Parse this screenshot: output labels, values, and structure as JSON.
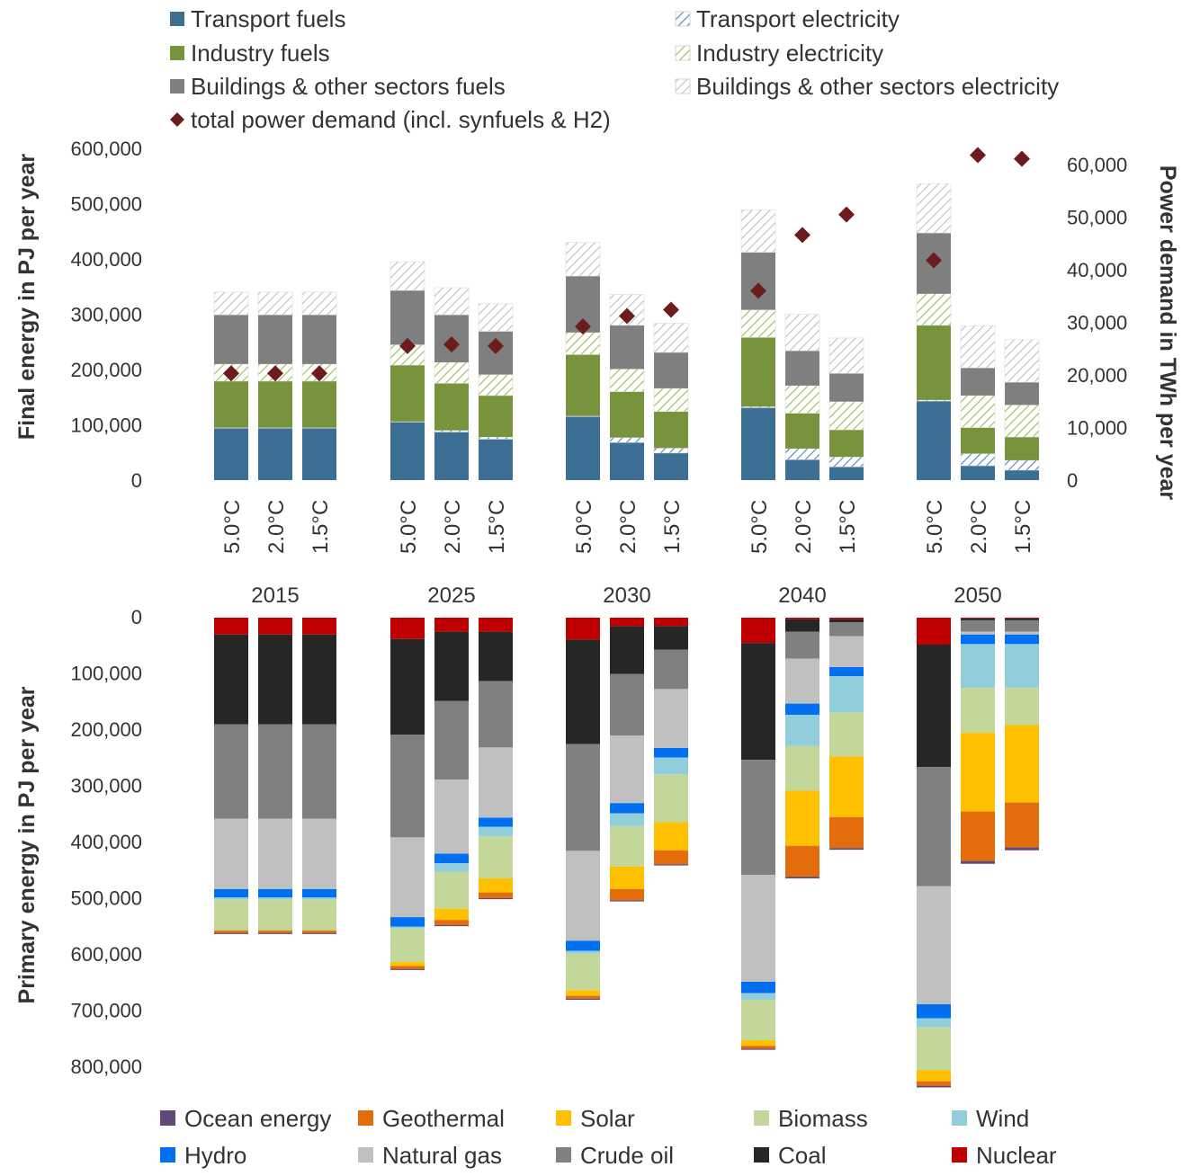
{
  "colors": {
    "transport_fuels": "#3d6e94",
    "industry_fuels": "#77933c",
    "buildings_fuels": "#7f7f7f",
    "transport_elec": "#4f81bd",
    "industry_elec": "#9bbb59",
    "buildings_elec": "#bfbfbf",
    "power_marker": "#6b1c1c",
    "ocean": "#60497a",
    "geothermal": "#e46c0a",
    "solar": "#ffc000",
    "biomass": "#c4d79b",
    "wind": "#92cddc",
    "hydro": "#0070f0",
    "natural_gas": "#c0c0c0",
    "crude_oil": "#808080",
    "coal": "#262626",
    "nuclear": "#c00000"
  },
  "legend_top": [
    {
      "key": "transport_fuels",
      "label": "Transport fuels",
      "pattern": false
    },
    {
      "key": "transport_elec",
      "label": "Transport electricity",
      "pattern": true
    },
    {
      "key": "industry_fuels",
      "label": "Industry fuels",
      "pattern": false
    },
    {
      "key": "industry_elec",
      "label": "Industry electricity",
      "pattern": true
    },
    {
      "key": "buildings_fuels",
      "label": "Buildings & other sectors fuels",
      "pattern": false
    },
    {
      "key": "buildings_elec",
      "label": "Buildings & other sectors electricity",
      "pattern": true
    },
    {
      "key": "power_marker",
      "label": "total power demand (incl. synfuels & H2)",
      "marker": "diamond"
    }
  ],
  "legend_bottom": [
    {
      "key": "ocean",
      "label": "Ocean energy"
    },
    {
      "key": "geothermal",
      "label": "Geothermal"
    },
    {
      "key": "solar",
      "label": "Solar"
    },
    {
      "key": "biomass",
      "label": "Biomass"
    },
    {
      "key": "wind",
      "label": "Wind"
    },
    {
      "key": "hydro",
      "label": "Hydro"
    },
    {
      "key": "natural_gas",
      "label": "Natural gas"
    },
    {
      "key": "crude_oil",
      "label": "Crude oil"
    },
    {
      "key": "coal",
      "label": "Coal"
    },
    {
      "key": "nuclear",
      "label": "Nuclear"
    }
  ],
  "chart_data": [
    {
      "type": "bar",
      "stacked": true,
      "title": "",
      "ylabel": "Final energy in PJ per year",
      "y2label": "Power demand in TWh per year",
      "ylim": [
        0,
        600000
      ],
      "y2lim": [
        0,
        63000
      ],
      "yticks": [
        "0",
        "100,000",
        "200,000",
        "300,000",
        "400,000",
        "500,000",
        "600,000"
      ],
      "y2ticks": [
        "0",
        "10,000",
        "20,000",
        "30,000",
        "40,000",
        "50,000",
        "60,000"
      ],
      "groups": [
        "2015",
        "2025",
        "2030",
        "2040",
        "2050"
      ],
      "scenarios": [
        "5.0°C",
        "2.0°C",
        "1.5°C"
      ],
      "series": [
        {
          "key": "transport_fuels",
          "name": "Transport fuels",
          "values": [
            [
              94000,
              94000,
              94000
            ],
            [
              105000,
              87000,
              74000
            ],
            [
              115000,
              68000,
              49000
            ],
            [
              131000,
              37000,
              24000
            ],
            [
              143000,
              26000,
              18000
            ]
          ]
        },
        {
          "key": "transport_elec",
          "name": "Transport electricity",
          "values": [
            [
              1000,
              1000,
              1000
            ],
            [
              1000,
              3000,
              4000
            ],
            [
              1000,
              9000,
              9000
            ],
            [
              2000,
              20000,
              18000
            ],
            [
              2000,
              22000,
              18000
            ]
          ]
        },
        {
          "key": "industry_fuels",
          "name": "Industry fuels",
          "values": [
            [
              84000,
              84000,
              84000
            ],
            [
              102000,
              85000,
              75000
            ],
            [
              111000,
              83000,
              66000
            ],
            [
              125000,
              64000,
              49000
            ],
            [
              135000,
              47000,
              42000
            ]
          ]
        },
        {
          "key": "industry_elec",
          "name": "Industry electricity",
          "values": [
            [
              31000,
              31000,
              31000
            ],
            [
              37000,
              38000,
              38000
            ],
            [
              40000,
              41000,
              42000
            ],
            [
              50000,
              50000,
              51000
            ],
            [
              57000,
              58000,
              58000
            ]
          ]
        },
        {
          "key": "buildings_fuels",
          "name": "Buildings & other sectors fuels",
          "values": [
            [
              89000,
              89000,
              89000
            ],
            [
              98000,
              86000,
              78000
            ],
            [
              102000,
              79000,
              65000
            ],
            [
              104000,
              63000,
              51000
            ],
            [
              110000,
              50000,
              41000
            ]
          ]
        },
        {
          "key": "buildings_elec",
          "name": "Buildings & other sectors electricity",
          "values": [
            [
              41000,
              41000,
              41000
            ],
            [
              52000,
              49000,
              50000
            ],
            [
              61000,
              56000,
              53000
            ],
            [
              77000,
              66000,
              64000
            ],
            [
              89000,
              76000,
              77000
            ]
          ]
        }
      ],
      "power_demand": {
        "name": "total power demand (incl. synfuels & H2)",
        "values": [
          [
            20300,
            20300,
            20300
          ],
          [
            25500,
            25800,
            25500
          ],
          [
            29200,
            31200,
            32400
          ],
          [
            36000,
            46600,
            50500
          ],
          [
            41800,
            61800,
            61100
          ]
        ]
      }
    },
    {
      "type": "bar",
      "stacked": true,
      "title": "",
      "ylabel": "Primary energy in PJ per year",
      "ylim": [
        0,
        850000
      ],
      "axis_inverted": true,
      "yticks": [
        "0",
        "100,000",
        "200,000",
        "300,000",
        "400,000",
        "500,000",
        "600,000",
        "700,000",
        "800,000"
      ],
      "groups": [
        "2015",
        "2025",
        "2030",
        "2040",
        "2050"
      ],
      "scenarios": [
        "5.0°C",
        "2.0°C",
        "1.5°C"
      ],
      "series": [
        {
          "key": "nuclear",
          "name": "Nuclear",
          "values": [
            [
              30000,
              30000,
              30000
            ],
            [
              38000,
              25000,
              25000
            ],
            [
              39000,
              15000,
              15000
            ],
            [
              45000,
              3000,
              3000
            ],
            [
              48000,
              2000,
              2000
            ]
          ]
        },
        {
          "key": "coal",
          "name": "Coal",
          "values": [
            [
              160000,
              160000,
              160000
            ],
            [
              170000,
              123000,
              88000
            ],
            [
              186000,
              85000,
              42000
            ],
            [
              208000,
              22000,
              5000
            ],
            [
              218000,
              3000,
              3000
            ]
          ]
        },
        {
          "key": "crude_oil",
          "name": "Crude oil",
          "values": [
            [
              168000,
              168000,
              168000
            ],
            [
              183000,
              140000,
              118000
            ],
            [
              190000,
              110000,
              70000
            ],
            [
              205000,
              48000,
              25000
            ],
            [
              212000,
              20000,
              20000
            ]
          ]
        },
        {
          "key": "natural_gas",
          "name": "Natural gas",
          "values": [
            [
              125000,
              125000,
              125000
            ],
            [
              142000,
              132000,
              125000
            ],
            [
              160000,
              120000,
              105000
            ],
            [
              190000,
              80000,
              55000
            ],
            [
              210000,
              5000,
              5000
            ]
          ]
        },
        {
          "key": "hydro",
          "name": "Hydro",
          "values": [
            [
              15000,
              15000,
              15000
            ],
            [
              17000,
              17000,
              16000
            ],
            [
              18000,
              18000,
              17000
            ],
            [
              20000,
              20000,
              16000
            ],
            [
              25000,
              17000,
              17000
            ]
          ]
        },
        {
          "key": "wind",
          "name": "Wind",
          "values": [
            [
              3000,
              3000,
              3000
            ],
            [
              3000,
              15000,
              17000
            ],
            [
              5000,
              23000,
              30000
            ],
            [
              12000,
              55000,
              65000
            ],
            [
              16000,
              78000,
              78000
            ]
          ]
        },
        {
          "key": "biomass",
          "name": "Biomass",
          "values": [
            [
              55000,
              55000,
              55000
            ],
            [
              60000,
              66000,
              75000
            ],
            [
              65000,
              72000,
              85000
            ],
            [
              72000,
              80000,
              78000
            ],
            [
              76000,
              80000,
              66000
            ]
          ]
        },
        {
          "key": "solar",
          "name": "Solar",
          "values": [
            [
              1000,
              1000,
              1000
            ],
            [
              7000,
              20000,
              25000
            ],
            [
              10000,
              40000,
              50000
            ],
            [
              10000,
              98000,
              108000
            ],
            [
              20000,
              140000,
              138000
            ]
          ]
        },
        {
          "key": "geothermal",
          "name": "Geothermal",
          "values": [
            [
              4000,
              4000,
              4000
            ],
            [
              5000,
              9000,
              10000
            ],
            [
              5000,
              20000,
              25000
            ],
            [
              5000,
              55000,
              55000
            ],
            [
              8000,
              88000,
              80000
            ]
          ]
        },
        {
          "key": "ocean",
          "name": "Ocean energy",
          "values": [
            [
              2000,
              2000,
              2000
            ],
            [
              2000,
              2000,
              2000
            ],
            [
              2000,
              2000,
              2000
            ],
            [
              2000,
              3000,
              3000
            ],
            [
              3000,
              5000,
              5000
            ]
          ]
        }
      ]
    }
  ]
}
